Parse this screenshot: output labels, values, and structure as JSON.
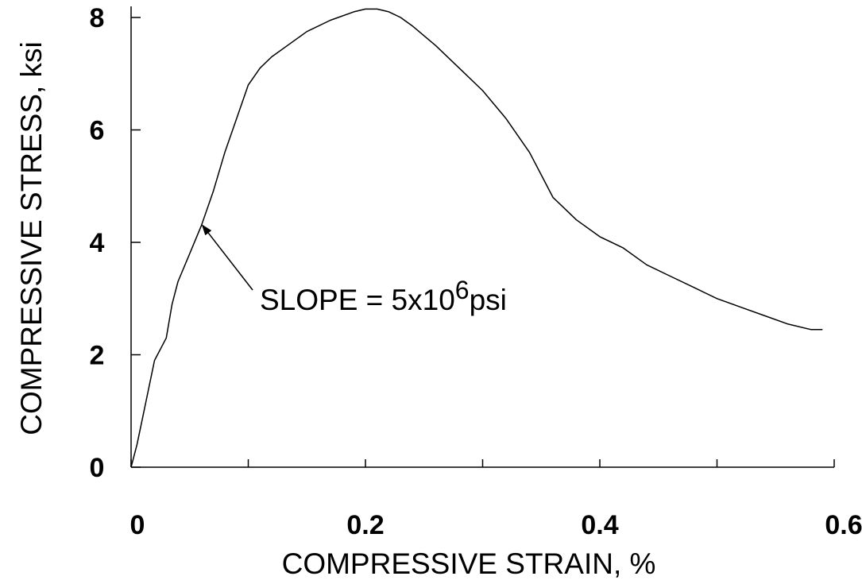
{
  "chart_data": {
    "type": "line",
    "xlabel": "COMPRESSIVE STRAIN, %",
    "ylabel": "COMPRESSIVE STRESS, ksi",
    "xlim": [
      0,
      0.6
    ],
    "ylim": [
      0,
      8.2
    ],
    "x_ticks": [
      0,
      0.2,
      0.4,
      0.6
    ],
    "x_tick_labels": [
      "0",
      "0.2",
      "0.4",
      "0.6"
    ],
    "x_minor_ticks": [
      0.1,
      0.3,
      0.5
    ],
    "y_ticks": [
      0,
      2,
      4,
      6,
      8
    ],
    "y_tick_labels": [
      "0",
      "2",
      "4",
      "6",
      "8"
    ],
    "grid": false,
    "series": [
      {
        "color": "#000000",
        "x": [
          0,
          0.005,
          0.01,
          0.02,
          0.03,
          0.035,
          0.04,
          0.05,
          0.06,
          0.07,
          0.08,
          0.09,
          0.1,
          0.11,
          0.12,
          0.14,
          0.15,
          0.17,
          0.19,
          0.2,
          0.21,
          0.22,
          0.23,
          0.24,
          0.26,
          0.28,
          0.3,
          0.32,
          0.34,
          0.35,
          0.36,
          0.37,
          0.38,
          0.4,
          0.42,
          0.44,
          0.46,
          0.48,
          0.5,
          0.52,
          0.54,
          0.56,
          0.58,
          0.59
        ],
        "y": [
          0,
          0.4,
          0.9,
          1.9,
          2.3,
          2.9,
          3.3,
          3.8,
          4.3,
          4.9,
          5.6,
          6.2,
          6.8,
          7.1,
          7.3,
          7.6,
          7.75,
          7.95,
          8.1,
          8.15,
          8.15,
          8.1,
          8.0,
          7.85,
          7.5,
          7.1,
          6.7,
          6.2,
          5.6,
          5.2,
          4.8,
          4.6,
          4.4,
          4.1,
          3.9,
          3.6,
          3.4,
          3.2,
          3.0,
          2.85,
          2.7,
          2.55,
          2.45,
          2.45
        ]
      }
    ],
    "annotations": [
      {
        "text_main": "SLOPE = 5x10",
        "text_sup": "6",
        "text_tail": "psi",
        "arrow_to": [
          0.061,
          4.3
        ]
      }
    ]
  }
}
